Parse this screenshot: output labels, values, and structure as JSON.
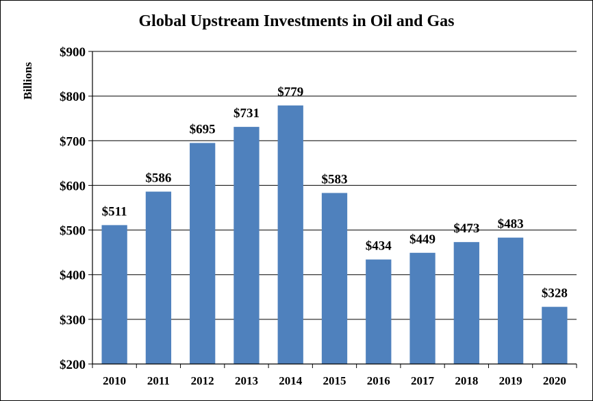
{
  "chart_data": {
    "type": "bar",
    "title": "Global Upstream Investments in Oil and Gas",
    "ylabel": "Billions",
    "xlabel": "",
    "categories": [
      "2010",
      "2011",
      "2012",
      "2013",
      "2014",
      "2015",
      "2016",
      "2017",
      "2018",
      "2019",
      "2020"
    ],
    "values": [
      511,
      586,
      695,
      731,
      779,
      583,
      434,
      449,
      473,
      483,
      328
    ],
    "data_labels": [
      "$511",
      "$586",
      "$695",
      "$731",
      "$779",
      "$583",
      "$434",
      "$449",
      "$473",
      "$483",
      "$328"
    ],
    "ylim": [
      200,
      900
    ],
    "yticks": [
      200,
      300,
      400,
      500,
      600,
      700,
      800,
      900
    ],
    "ytick_labels": [
      "$200",
      "$300",
      "$400",
      "$500",
      "$600",
      "$700",
      "$800",
      "$900"
    ],
    "grid": true,
    "legend": "none",
    "bar_color": "#4f81bd"
  }
}
